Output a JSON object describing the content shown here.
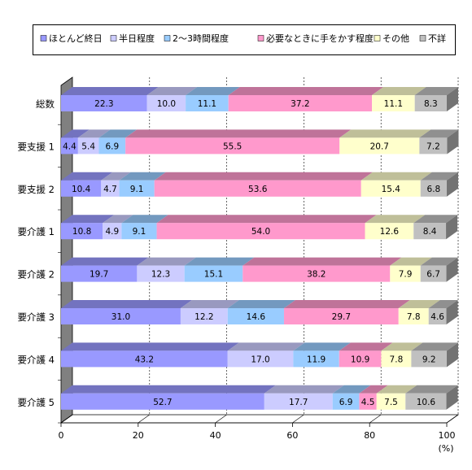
{
  "chart_data": {
    "type": "bar",
    "orientation": "horizontal",
    "stacked": true,
    "percent": true,
    "categories": [
      "総数",
      "要支援 1",
      "要支援 2",
      "要介護 1",
      "要介護 2",
      "要介護 3",
      "要介護 4",
      "要介護 5"
    ],
    "series": [
      {
        "name": "ほとんど終日",
        "color": "#9999ff",
        "values": [
          22.3,
          4.4,
          10.4,
          10.8,
          19.7,
          31.0,
          43.2,
          52.7
        ]
      },
      {
        "name": "半日程度",
        "color": "#ccccff",
        "values": [
          10.0,
          5.4,
          4.7,
          4.9,
          12.3,
          12.2,
          17.0,
          17.7
        ]
      },
      {
        "name": "2～3時間程度",
        "color": "#99ccff",
        "values": [
          11.1,
          6.9,
          9.1,
          9.1,
          15.1,
          14.6,
          11.9,
          6.9
        ]
      },
      {
        "name": "必要なときに手をかす程度",
        "color": "#ff99cc",
        "values": [
          37.2,
          55.5,
          53.6,
          54.0,
          38.2,
          29.7,
          10.9,
          4.5
        ]
      },
      {
        "name": "その他",
        "color": "#ffffcc",
        "values": [
          11.1,
          20.7,
          15.4,
          12.6,
          7.9,
          7.8,
          7.8,
          7.5
        ]
      },
      {
        "name": "不詳",
        "color": "#c0c0c0",
        "values": [
          8.3,
          7.2,
          6.8,
          8.4,
          6.7,
          4.6,
          9.2,
          10.6
        ]
      }
    ],
    "value_labels": [
      [
        "22.3",
        "10.0",
        "11.1",
        "37.2",
        "11.1",
        "8.3"
      ],
      [
        "4.4",
        "5.4",
        "6.9",
        "55.5",
        "20.7",
        "7.2"
      ],
      [
        "10.4",
        "4.7",
        "9.1",
        "53.6",
        "15.4",
        "6.8"
      ],
      [
        "10.8",
        "4.9",
        "9.1",
        "54.0",
        "12.6",
        "8.4"
      ],
      [
        "19.7",
        "12.3",
        "15.1",
        "38.2",
        "7.9",
        "6.7"
      ],
      [
        "31.0",
        "12.2",
        "14.6",
        "29.7",
        "7.8",
        "4.6"
      ],
      [
        "43.2",
        "17.0",
        "11.9",
        "10.9",
        "7.8",
        "9.2"
      ],
      [
        "52.7",
        "17.7",
        "6.9",
        "4.5",
        "7.5",
        "10.6"
      ]
    ],
    "x_ticks": [
      "0",
      "20",
      "40",
      "60",
      "80",
      "100"
    ],
    "xlim": [
      0,
      100
    ],
    "x_unit": "(%)",
    "legend_position": "top",
    "grid": "vertical-dashed",
    "wall_color": "#808080"
  }
}
